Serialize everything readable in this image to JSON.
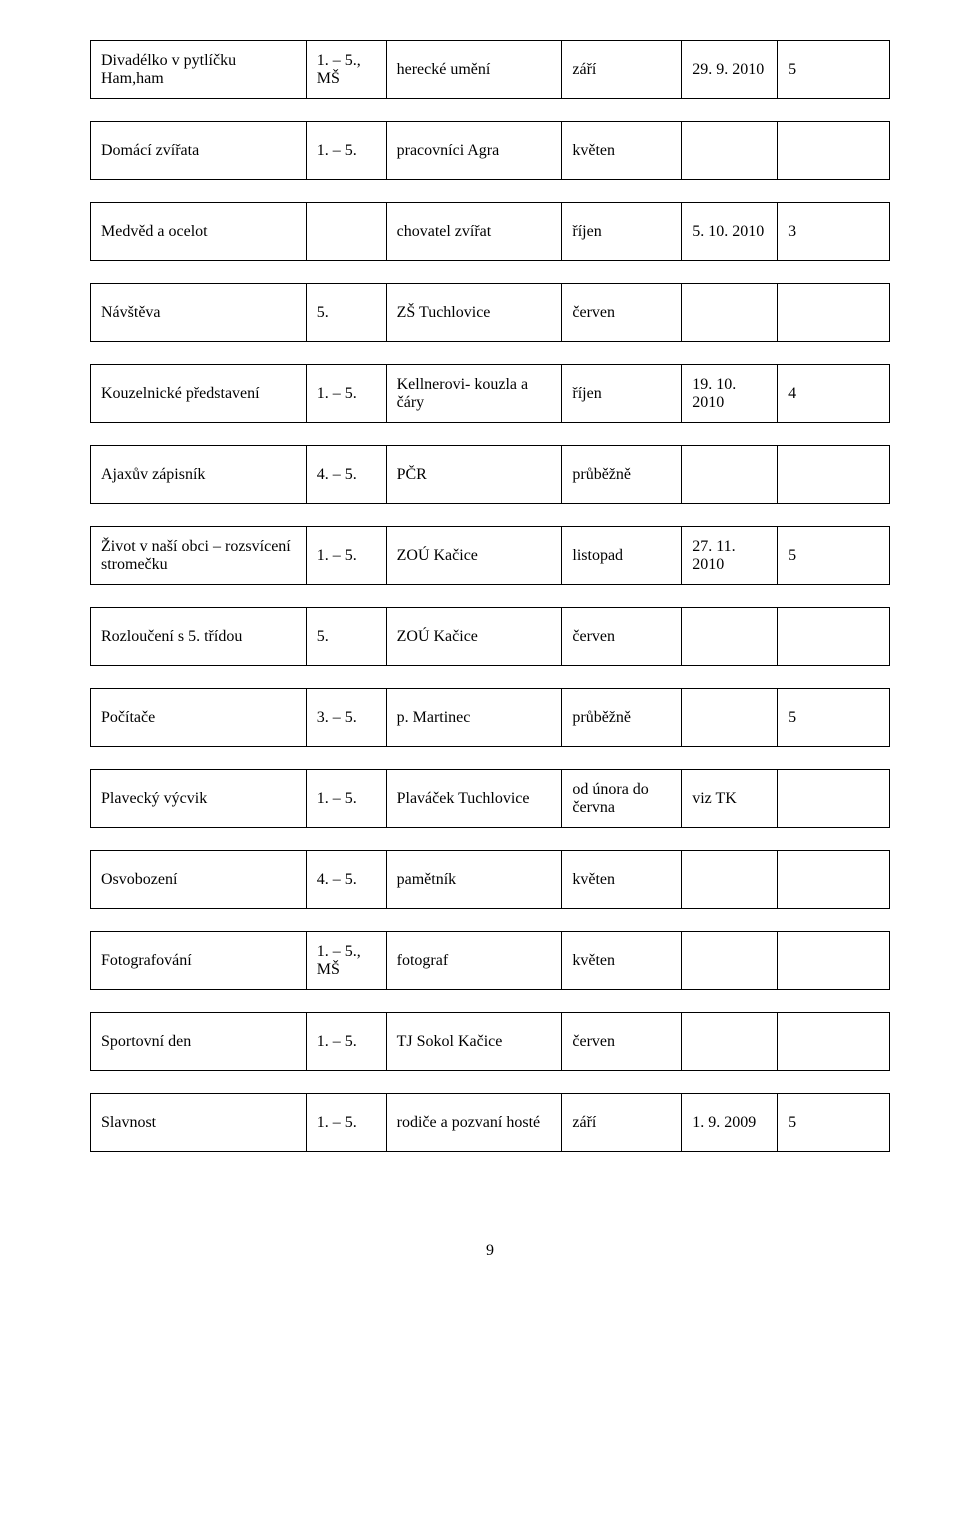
{
  "rows": [
    {
      "c1": "Divadélko v pytlíčku Ham,ham",
      "c2": "1. – 5., MŠ",
      "c3": "herecké umění",
      "c4": "září",
      "c5": "29. 9. 2010",
      "c6": "5"
    },
    {
      "c1": "Domácí zvířata",
      "c2": "1. – 5.",
      "c3": "pracovníci Agra",
      "c4": "květen",
      "c5": "",
      "c6": ""
    },
    {
      "c1": "Medvěd a ocelot",
      "c2": "",
      "c3": "chovatel zvířat",
      "c4": "říjen",
      "c5": "5. 10. 2010",
      "c6": "3"
    },
    {
      "c1": "Návštěva",
      "c2": "5.",
      "c3": "ZŠ Tuchlovice",
      "c4": "červen",
      "c5": "",
      "c6": ""
    },
    {
      "c1": "Kouzelnické představení",
      "c2": "1. – 5.",
      "c3": "Kellnerovi- kouzla a čáry",
      "c4": "říjen",
      "c5": "19. 10. 2010",
      "c6": "4"
    },
    {
      "c1": "Ajaxův zápisník",
      "c2": "4. – 5.",
      "c3": "PČR",
      "c4": "průběžně",
      "c5": "",
      "c6": ""
    },
    {
      "c1": "Život v naší obci – rozsvícení stromečku",
      "c2": "1. – 5.",
      "c3": "ZOÚ Kačice",
      "c4": "listopad",
      "c5": "27. 11. 2010",
      "c6": "5"
    },
    {
      "c1": "Rozloučení s 5. třídou",
      "c2": "5.",
      "c3": "ZOÚ Kačice",
      "c4": "červen",
      "c5": "",
      "c6": ""
    },
    {
      "c1": "Počítače",
      "c2": "3. – 5.",
      "c3": "p. Martinec",
      "c4": "průběžně",
      "c5": "",
      "c6": "5"
    },
    {
      "c1": "Plavecký výcvik",
      "c2": "1. – 5.",
      "c3": "Plaváček Tuchlovice",
      "c4": "od února do června",
      "c5": "viz TK",
      "c6": ""
    },
    {
      "c1": "Osvobození",
      "c2": "4. – 5.",
      "c3": "pamětník",
      "c4": "květen",
      "c5": "",
      "c6": ""
    },
    {
      "c1": "Fotografování",
      "c2": "1. – 5., MŠ",
      "c3": "fotograf",
      "c4": "květen",
      "c5": "",
      "c6": ""
    },
    {
      "c1": "Sportovní den",
      "c2": "1. – 5.",
      "c3": "TJ Sokol Kačice",
      "c4": "červen",
      "c5": "",
      "c6": ""
    },
    {
      "c1": "Slavnost",
      "c2": "1. – 5.",
      "c3": "rodiče a pozvaní hosté",
      "c4": "září",
      "c5": "1. 9. 2009",
      "c6": "5"
    }
  ],
  "page_number": "9",
  "border_color": "#000000",
  "background_color": "#ffffff",
  "font_family": "Times New Roman",
  "font_size_pt": 12
}
